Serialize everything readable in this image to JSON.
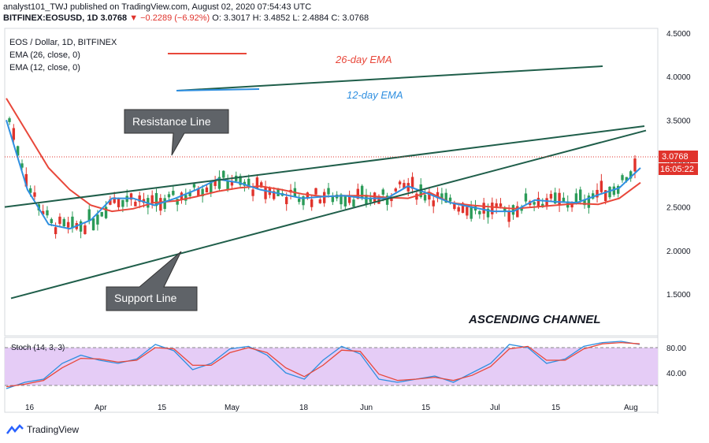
{
  "header": {
    "publisher": "analyst101_TWJ published on TradingView.com, August 02, 2020 07:54:43 UTC",
    "symbol": "BITFINEX:EOSUSD, 1D",
    "price": "3.0768",
    "change": "▼ −0.2289 (−6.92%)",
    "open": "O: 3.3017",
    "high": "H: 3.4852",
    "low": "L: 2.4884",
    "close": "C: 3.0768"
  },
  "legend": {
    "title": "EOS / Dollar, 1D, BITFINEX",
    "ema26": "EMA (26, close, 0)",
    "ema12": "EMA (12, close, 0)"
  },
  "annotations": {
    "ema26_label": "26-day EMA",
    "ema12_label": "12-day EMA",
    "resistance": "Resistance Line",
    "support": "Support Line",
    "channel": "ASCENDING CHANNEL"
  },
  "price_tag": {
    "value": "3.0768",
    "countdown": "16:05:22"
  },
  "stoch": {
    "label": "Stoch (14, 3, 3)",
    "levels": [
      "80.00",
      "40.00"
    ]
  },
  "footer": {
    "brand": "TradingView"
  },
  "colors": {
    "ema26": "#e8473a",
    "ema12": "#2f8fe0",
    "up": "#2b9b58",
    "down": "#e0332c",
    "channel": "#1f5e4a",
    "stoch_bg": "#e5ccf6"
  },
  "chart_data": {
    "type": "line",
    "y_ticks": [
      "4.5000",
      "4.0000",
      "3.5000",
      "3.0000",
      "2.5000",
      "2.0000",
      "1.5000"
    ],
    "y_range": [
      1.3,
      4.5
    ],
    "x_ticks": [
      "16",
      "Apr",
      "15",
      "May",
      "18",
      "Jun",
      "15",
      "Jul",
      "15",
      "Aug"
    ],
    "series": [
      {
        "name": "EMA (26, close, 0)",
        "values": [
          3.75,
          3.35,
          2.95,
          2.7,
          2.52,
          2.45,
          2.48,
          2.55,
          2.57,
          2.62,
          2.68,
          2.72,
          2.74,
          2.7,
          2.65,
          2.62,
          2.63,
          2.63,
          2.61,
          2.6,
          2.67,
          2.55,
          2.52,
          2.5,
          2.48,
          2.5,
          2.52,
          2.54,
          2.53,
          2.6,
          2.78
        ]
      },
      {
        "name": "EMA (12, close, 0)",
        "values": [
          3.5,
          2.7,
          2.3,
          2.25,
          2.35,
          2.6,
          2.6,
          2.52,
          2.6,
          2.7,
          2.82,
          2.78,
          2.7,
          2.65,
          2.6,
          2.62,
          2.63,
          2.6,
          2.6,
          2.74,
          2.65,
          2.55,
          2.5,
          2.45,
          2.45,
          2.58,
          2.56,
          2.55,
          2.64,
          2.72,
          2.95
        ]
      }
    ],
    "channel": {
      "resistance": [
        [
          0.0,
          2.5
        ],
        [
          1.0,
          3.45
        ]
      ],
      "support": [
        [
          0.0,
          1.45
        ],
        [
          1.0,
          3.33
        ]
      ]
    },
    "stochastic": {
      "levels": [
        80,
        40
      ],
      "k": [
        15,
        25,
        30,
        55,
        68,
        60,
        55,
        62,
        85,
        75,
        45,
        55,
        78,
        82,
        68,
        40,
        30,
        60,
        82,
        70,
        30,
        25,
        30,
        35,
        25,
        40,
        55,
        85,
        80,
        55,
        62,
        82,
        88,
        90,
        85
      ],
      "d": [
        18,
        22,
        28,
        48,
        63,
        62,
        57,
        60,
        80,
        78,
        52,
        52,
        72,
        80,
        72,
        48,
        34,
        52,
        76,
        74,
        38,
        28,
        30,
        33,
        28,
        36,
        50,
        78,
        82,
        60,
        60,
        78,
        86,
        88,
        86
      ]
    }
  }
}
